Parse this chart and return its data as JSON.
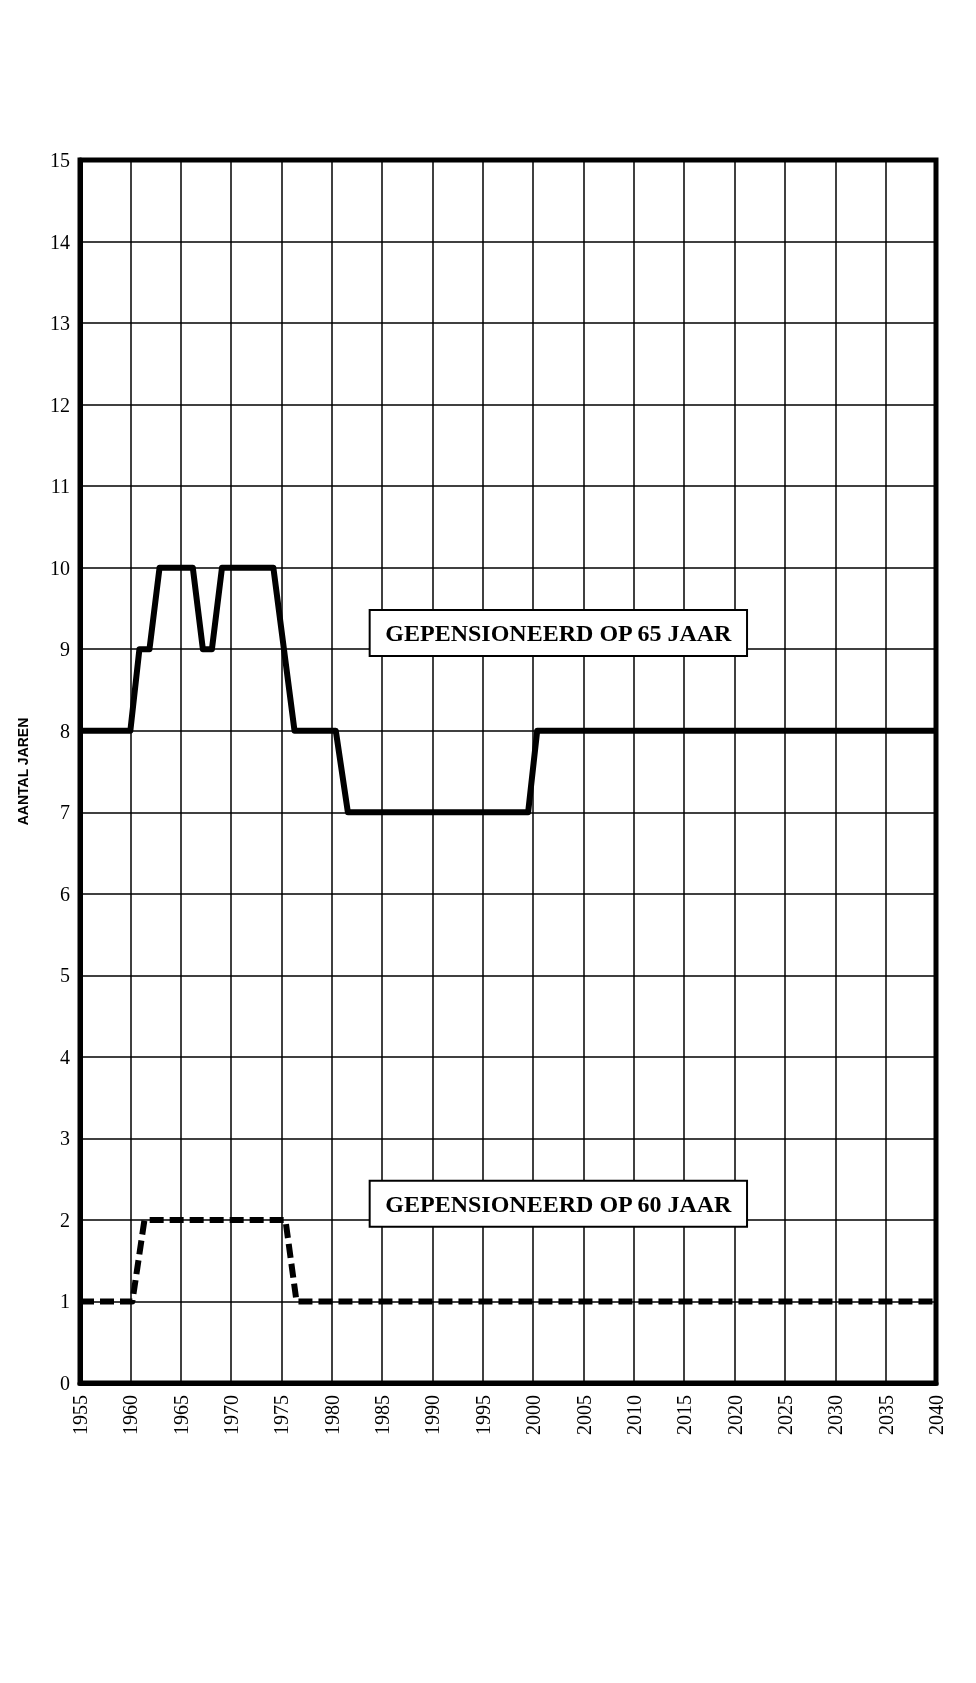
{
  "chart_data": {
    "type": "line",
    "ylabel": "AANTAL JAREN",
    "xlim": [
      1955,
      2040
    ],
    "xticks": [
      1955,
      1960,
      1965,
      1970,
      1975,
      1980,
      1985,
      1990,
      1995,
      2000,
      2005,
      2010,
      2015,
      2020,
      2025,
      2030,
      2035,
      2040
    ],
    "ylim": [
      0,
      15
    ],
    "yticks": [
      0,
      1,
      2,
      3,
      4,
      5,
      6,
      7,
      8,
      9,
      10,
      11,
      12,
      13,
      14,
      15
    ],
    "grid": true,
    "legend": false,
    "marker": "none",
    "series": [
      {
        "name": "GEPENSIONEERD OP 65 JAAR",
        "color": "#000000",
        "line_style": "solid",
        "x": [
          1955,
          1960,
          1960.9,
          1961.9,
          1962.9,
          1966.2,
          1967.2,
          1968.1,
          1969.1,
          1974.2,
          1976.3,
          1980.4,
          1981.6,
          1999.5,
          2000.4,
          2040
        ],
        "values": [
          8,
          8,
          9,
          9,
          10,
          10,
          9,
          9,
          10,
          10,
          8,
          8,
          7,
          7,
          8,
          8
        ]
      },
      {
        "name": "GEPENSIONEERD OP 60 JAAR",
        "color": "#000000",
        "line_style": "dashed",
        "x": [
          1955,
          1960.2,
          1961.4,
          1975.4,
          1976.5,
          2040
        ],
        "values": [
          1,
          1,
          2,
          2,
          1,
          1
        ]
      }
    ]
  }
}
